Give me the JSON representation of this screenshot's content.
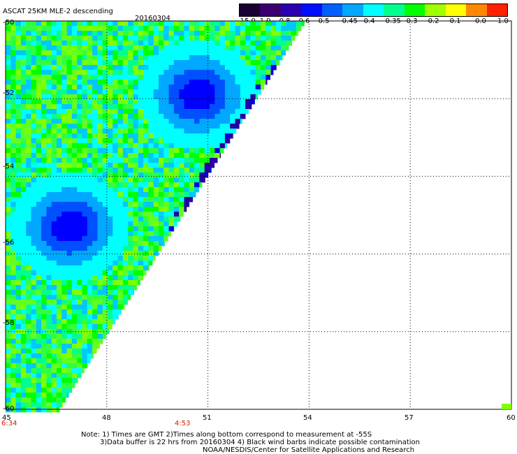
{
  "header": {
    "title": "ASCAT 25KM MLE-2 descending",
    "date": "20160304"
  },
  "colorbar": {
    "labels": [
      "-15.0",
      "-1.0",
      "-0.8",
      "-0.6",
      "-0.5",
      "-0.45",
      "-0.4",
      "-0.35",
      "-0.3",
      "-0.2",
      "-0.1",
      "0.0",
      "1.0"
    ],
    "colors": [
      "#1a0033",
      "#3a0070",
      "#2a00b0",
      "#0010ff",
      "#0060ff",
      "#00a8ff",
      "#00ffff",
      "#00ff90",
      "#00ff00",
      "#a0ff00",
      "#ffff00",
      "#ff8800",
      "#ff2000"
    ]
  },
  "axes": {
    "y_labels": [
      "-50",
      "-52",
      "-54",
      "-56",
      "-58",
      "-60"
    ],
    "x_labels": [
      "45",
      "48",
      "51",
      "54",
      "57",
      "60"
    ],
    "time_labels": [
      "6:34",
      "4:53"
    ]
  },
  "notes": {
    "line1": "Note: 1) Times are GMT 2)Times along bottom correspond to measurement at -55S",
    "line2": "3)Data buffer is 22 hrs from 20160304 4) Black wind barbs indicate possible contamination",
    "line3": "NOAA/NESDIS/Center for Satellite Applications and Research"
  },
  "map": {
    "lon_range": [
      45,
      60
    ],
    "lat_range": [
      -60,
      -50
    ],
    "swath_edge": [
      [
        -50,
        53.9
      ],
      [
        -60,
        46.6
      ]
    ],
    "low_centers": [
      {
        "lat": -51.9,
        "lon": 50.7,
        "level": "-0.6"
      },
      {
        "lat": -55.3,
        "lon": 46.9,
        "level": "-0.6"
      }
    ]
  }
}
